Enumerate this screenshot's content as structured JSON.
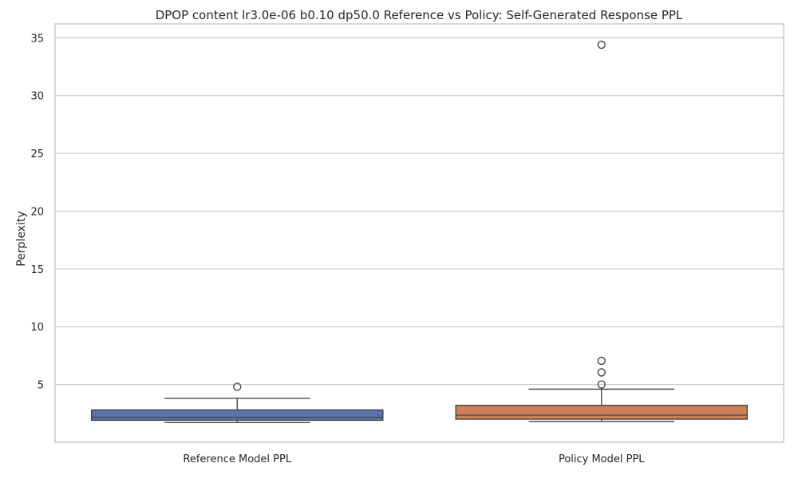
{
  "chart_data": {
    "type": "box",
    "title": "DPOP content lr3.0e-06 b0.10 dp50.0 Reference vs Policy: Self-Generated Response PPL",
    "xlabel": "",
    "ylabel": "Perplexity",
    "ylim": [
      0.0,
      36.2
    ],
    "yticks": [
      5,
      10,
      15,
      20,
      25,
      30,
      35
    ],
    "grid": true,
    "categories": [
      "Reference Model PPL",
      "Policy Model PPL"
    ],
    "boxes": [
      {
        "label": "Reference Model PPL",
        "color": "#5b73ad",
        "whisker_low": 1.7,
        "q1": 1.9,
        "median": 2.15,
        "q3": 2.8,
        "whisker_high": 3.8,
        "outliers": [
          4.8
        ]
      },
      {
        "label": "Policy Model PPL",
        "color": "#cd8058",
        "whisker_low": 1.8,
        "q1": 2.0,
        "median": 2.35,
        "q3": 3.2,
        "whisker_high": 4.6,
        "outliers": [
          5.0,
          6.05,
          7.05,
          34.4
        ]
      }
    ]
  }
}
